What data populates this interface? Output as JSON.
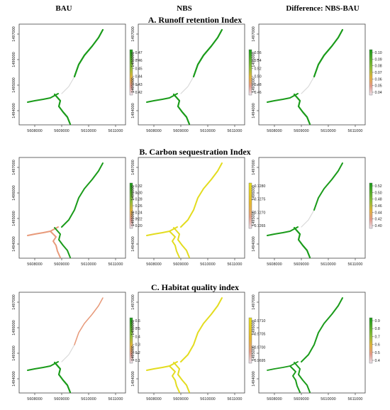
{
  "column_headers": [
    "BAU",
    "NBS",
    "Difference: NBS-BAU"
  ],
  "row_titles": [
    "A. Runoff retention Index",
    "B. Carbon sequestration Index",
    "C. Habitat quality index"
  ],
  "chart_data": [
    {
      "type": "map",
      "row": 0,
      "col": 0,
      "xticks": [
        "5608000",
        "5609000",
        "5610000",
        "5611000"
      ],
      "yticks": [
        "1497000",
        "1496000",
        "1495000",
        "1494000"
      ],
      "legend_ticks": [
        "0.47",
        "0.46",
        "0.45",
        "0.44",
        "0.43",
        "0.42"
      ],
      "palette": "low",
      "style": "A"
    },
    {
      "type": "map",
      "row": 0,
      "col": 1,
      "xticks": [
        "5608000",
        "5609000",
        "5610000",
        "5611000"
      ],
      "yticks": [
        "1497000",
        "1496000",
        "1495000",
        "1494000"
      ],
      "legend_ticks": [
        "0.56",
        "0.54",
        "0.52",
        "0.50",
        "0.48",
        "0.46"
      ],
      "palette": "low",
      "style": "A"
    },
    {
      "type": "map",
      "row": 0,
      "col": 2,
      "xticks": [
        "5608000",
        "5609000",
        "5610000",
        "5611000"
      ],
      "yticks": [
        "1497000",
        "1496000",
        "1495000",
        "1494000"
      ],
      "legend_ticks": [
        "0.10",
        "0.09",
        "0.08",
        "0.07",
        "0.06",
        "0.05",
        "0.04"
      ],
      "palette": "low",
      "style": "A"
    },
    {
      "type": "map",
      "row": 1,
      "col": 0,
      "xticks": [
        "5608000",
        "5609000",
        "5610000",
        "5611000"
      ],
      "yticks": [
        "1497000",
        "1496000",
        "1495000",
        "1494000"
      ],
      "legend_ticks": [
        "0.32",
        "0.30",
        "0.28",
        "0.26",
        "0.24",
        "0.22",
        "0.20"
      ],
      "palette": "low",
      "style": "B0"
    },
    {
      "type": "map",
      "row": 1,
      "col": 1,
      "xticks": [
        "5608000",
        "5609000",
        "5610000",
        "5611000"
      ],
      "yticks": [
        "1497000",
        "1496000",
        "1495000",
        "1494000"
      ],
      "legend_ticks": [
        "0.7280",
        "0.7275",
        "0.7270",
        "0.7265"
      ],
      "palette": "yellow",
      "style": "Y"
    },
    {
      "type": "map",
      "row": 1,
      "col": 2,
      "xticks": [
        "5608000",
        "5609000",
        "5610000",
        "5611000"
      ],
      "yticks": [
        "1497000",
        "1496000",
        "1495000",
        "1494000"
      ],
      "legend_ticks": [
        "0.52",
        "0.50",
        "0.48",
        "0.46",
        "0.44",
        "0.42",
        "0.40"
      ],
      "palette": "low",
      "style": "B2"
    },
    {
      "type": "map",
      "row": 2,
      "col": 0,
      "xticks": [
        "5608000",
        "5609000",
        "5610000",
        "5611000"
      ],
      "yticks": [
        "1497000",
        "1496000",
        "1495000",
        "1494000"
      ],
      "legend_ticks": [
        "0.6",
        "0.5",
        "0.4",
        "0.3",
        "0.2",
        "0.1"
      ],
      "palette": "low",
      "style": "C0"
    },
    {
      "type": "map",
      "row": 2,
      "col": 1,
      "xticks": [
        "5608000",
        "5609000",
        "5610000",
        "5611000"
      ],
      "yticks": [
        "1497000",
        "1496000",
        "1495000",
        "1494000"
      ],
      "legend_ticks": [
        "0.9710",
        "0.9705",
        "0.9700",
        "0.9695"
      ],
      "palette": "yellow",
      "style": "Y"
    },
    {
      "type": "map",
      "row": 2,
      "col": 2,
      "xticks": [
        "5608000",
        "5609000",
        "5610000",
        "5611000"
      ],
      "yticks": [
        "1497000",
        "1496000",
        "1495000",
        "1494000"
      ],
      "legend_ticks": [
        "0.9",
        "0.8",
        "0.7",
        "0.6",
        "0.5",
        "0.4"
      ],
      "palette": "low",
      "style": "C2"
    }
  ]
}
